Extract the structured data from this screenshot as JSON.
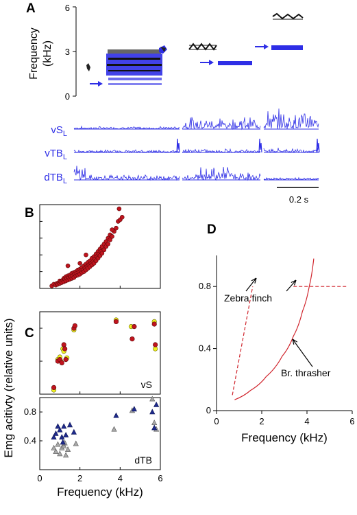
{
  "panel_a": {
    "label": "A",
    "ylabel_line1": "Frequency",
    "ylabel_line2": "(kHz)",
    "yticks": [
      "6",
      "3",
      "0"
    ],
    "ylim": [
      0,
      6
    ],
    "emg_traces": [
      {
        "name": "vS",
        "sub": "L"
      },
      {
        "name": "vTB",
        "sub": "L"
      },
      {
        "name": "dTB",
        "sub": "L"
      }
    ],
    "scale_label": "0.2 s"
  },
  "panel_b": {
    "label": "B"
  },
  "panel_c": {
    "label": "C",
    "top_label": "vS",
    "bottom_label": "dTB"
  },
  "panel_d": {
    "label": "D"
  },
  "shared": {
    "ylabel": "Emg acitivty (relative units)"
  },
  "colors": {
    "spectrogram_blue": "#2e2ee6",
    "red_fill": "#c0141e",
    "yellow_fill": "#f0f020",
    "navy": "#1e2a8c",
    "grey": "#a8a8a8",
    "curve_red": "#d0242c"
  },
  "chart_data": [
    {
      "panel": "B",
      "type": "scatter",
      "xlim": [
        0,
        6
      ],
      "x_ticks_labeled": false,
      "series": [
        {
          "points": [
            [
              0.6,
              0.03
            ],
            [
              0.7,
              0.05
            ],
            [
              0.8,
              0.04
            ],
            [
              0.85,
              0.06
            ],
            [
              0.9,
              0.05
            ],
            [
              0.95,
              0.07
            ],
            [
              1.0,
              0.06
            ],
            [
              1.0,
              0.09
            ],
            [
              1.05,
              0.08
            ],
            [
              1.1,
              0.07
            ],
            [
              1.15,
              0.1
            ],
            [
              1.2,
              0.08
            ],
            [
              1.2,
              0.12
            ],
            [
              1.25,
              0.11
            ],
            [
              1.3,
              0.09
            ],
            [
              1.3,
              0.14
            ],
            [
              1.35,
              0.12
            ],
            [
              1.4,
              0.1
            ],
            [
              1.4,
              0.15
            ],
            [
              1.45,
              0.13
            ],
            [
              1.5,
              0.11
            ],
            [
              1.5,
              0.16
            ],
            [
              1.55,
              0.14
            ],
            [
              1.6,
              0.12
            ],
            [
              1.6,
              0.18
            ],
            [
              1.65,
              0.15
            ],
            [
              1.7,
              0.13
            ],
            [
              1.7,
              0.19
            ],
            [
              1.75,
              0.17
            ],
            [
              1.8,
              0.15
            ],
            [
              1.8,
              0.2
            ],
            [
              1.85,
              0.18
            ],
            [
              1.9,
              0.16
            ],
            [
              1.9,
              0.22
            ],
            [
              1.95,
              0.19
            ],
            [
              2.0,
              0.17
            ],
            [
              2.0,
              0.23
            ],
            [
              2.05,
              0.21
            ],
            [
              2.1,
              0.19
            ],
            [
              2.1,
              0.25
            ],
            [
              2.15,
              0.22
            ],
            [
              2.2,
              0.2
            ],
            [
              2.2,
              0.27
            ],
            [
              2.25,
              0.24
            ],
            [
              2.3,
              0.22
            ],
            [
              2.3,
              0.29
            ],
            [
              2.35,
              0.26
            ],
            [
              2.4,
              0.24
            ],
            [
              2.4,
              0.31
            ],
            [
              2.45,
              0.28
            ],
            [
              2.5,
              0.26
            ],
            [
              2.5,
              0.33
            ],
            [
              2.55,
              0.3
            ],
            [
              2.6,
              0.28
            ],
            [
              2.6,
              0.36
            ],
            [
              2.65,
              0.32
            ],
            [
              2.7,
              0.3
            ],
            [
              2.7,
              0.38
            ],
            [
              2.75,
              0.35
            ],
            [
              2.8,
              0.33
            ],
            [
              2.8,
              0.41
            ],
            [
              2.85,
              0.38
            ],
            [
              2.9,
              0.36
            ],
            [
              2.9,
              0.44
            ],
            [
              2.95,
              0.41
            ],
            [
              3.0,
              0.39
            ],
            [
              3.0,
              0.47
            ],
            [
              3.05,
              0.44
            ],
            [
              3.1,
              0.42
            ],
            [
              3.1,
              0.5
            ],
            [
              3.2,
              0.46
            ],
            [
              3.2,
              0.53
            ],
            [
              3.3,
              0.5
            ],
            [
              3.3,
              0.56
            ],
            [
              3.4,
              0.53
            ],
            [
              3.4,
              0.6
            ],
            [
              3.5,
              0.58
            ],
            [
              3.5,
              0.64
            ],
            [
              3.6,
              0.62
            ],
            [
              3.7,
              0.68
            ],
            [
              3.6,
              0.7
            ],
            [
              3.8,
              0.72
            ],
            [
              2.3,
              0.4
            ],
            [
              1.4,
              0.27
            ],
            [
              3.9,
              0.8
            ],
            [
              4.0,
              0.82
            ],
            [
              4.1,
              0.85
            ],
            [
              3.95,
              0.95
            ],
            [
              2.0,
              0.3
            ]
          ]
        }
      ]
    },
    {
      "panel": "C-top",
      "type": "scatter",
      "xlim": [
        0,
        6
      ],
      "series": [
        {
          "points": [
            [
              0.7,
              0.08
            ],
            [
              0.9,
              0.4
            ],
            [
              1.0,
              0.42
            ],
            [
              1.1,
              0.38
            ],
            [
              1.2,
              0.6
            ],
            [
              1.25,
              0.55
            ],
            [
              1.3,
              0.42
            ],
            [
              1.7,
              0.8
            ],
            [
              1.75,
              0.83
            ],
            [
              3.8,
              0.88
            ],
            [
              4.6,
              0.67
            ],
            [
              4.7,
              0.82
            ],
            [
              5.7,
              0.85
            ],
            [
              5.75,
              0.6
            ]
          ]
        },
        {
          "points": [
            [
              0.7,
              0.05
            ],
            [
              0.9,
              0.42
            ],
            [
              1.0,
              0.45
            ],
            [
              1.05,
              0.4
            ],
            [
              1.15,
              0.55
            ],
            [
              1.2,
              0.52
            ],
            [
              1.35,
              0.44
            ],
            [
              1.7,
              0.78
            ],
            [
              3.8,
              0.9
            ],
            [
              4.55,
              0.82
            ],
            [
              5.7,
              0.88
            ],
            [
              5.75,
              0.55
            ]
          ]
        }
      ]
    },
    {
      "panel": "C-bottom",
      "type": "scatter",
      "xlim": [
        0,
        6
      ],
      "ylim": [
        0,
        1.0
      ],
      "x_ticks": [
        0,
        2,
        4,
        6
      ],
      "y_ticks": [
        0.4,
        0.8
      ],
      "xlabel": "Frequency (kHz)",
      "series": [
        {
          "marker": "triangle",
          "points": [
            [
              0.7,
              0.45
            ],
            [
              0.8,
              0.5
            ],
            [
              0.9,
              0.6
            ],
            [
              1.0,
              0.55
            ],
            [
              1.1,
              0.45
            ],
            [
              1.15,
              0.38
            ],
            [
              1.2,
              0.6
            ],
            [
              1.3,
              0.48
            ],
            [
              1.5,
              0.62
            ],
            [
              1.7,
              0.52
            ],
            [
              3.8,
              0.75
            ],
            [
              4.7,
              0.84
            ],
            [
              5.6,
              0.8
            ],
            [
              5.7,
              0.58
            ],
            [
              5.8,
              0.9
            ]
          ]
        },
        {
          "marker": "triangle",
          "points": [
            [
              0.7,
              0.3
            ],
            [
              0.8,
              0.25
            ],
            [
              0.9,
              0.35
            ],
            [
              1.0,
              0.22
            ],
            [
              1.1,
              0.3
            ],
            [
              1.2,
              0.33
            ],
            [
              1.25,
              0.37
            ],
            [
              1.3,
              0.2
            ],
            [
              1.4,
              0.28
            ],
            [
              1.8,
              0.36
            ],
            [
              3.7,
              0.56
            ],
            [
              4.6,
              0.82
            ],
            [
              5.6,
              0.98
            ],
            [
              5.7,
              0.65
            ],
            [
              5.8,
              0.56
            ]
          ]
        }
      ]
    },
    {
      "panel": "D",
      "type": "line",
      "xlim": [
        0,
        6
      ],
      "ylim": [
        0,
        1.0
      ],
      "x_ticks": [
        0,
        2,
        4,
        6
      ],
      "y_ticks": [
        0,
        0.4,
        0.8
      ],
      "xlabel": "Frequency (kHz)",
      "annotations": [
        "Zebra finch",
        "Br. thrasher"
      ],
      "series": [
        {
          "name": "Zebra finch",
          "style": "dashed",
          "x": [
            0.7,
            1.6,
            3.4,
            5.8
          ],
          "y": [
            0.1,
            0.8,
            0.8,
            0.8
          ]
        },
        {
          "name": "Br. thrasher",
          "style": "solid",
          "x": [
            0.8,
            1.5,
            2.2,
            2.9,
            3.4,
            3.8,
            4.1,
            4.3
          ],
          "y": [
            0.07,
            0.13,
            0.22,
            0.35,
            0.48,
            0.64,
            0.8,
            0.98
          ]
        }
      ]
    }
  ]
}
